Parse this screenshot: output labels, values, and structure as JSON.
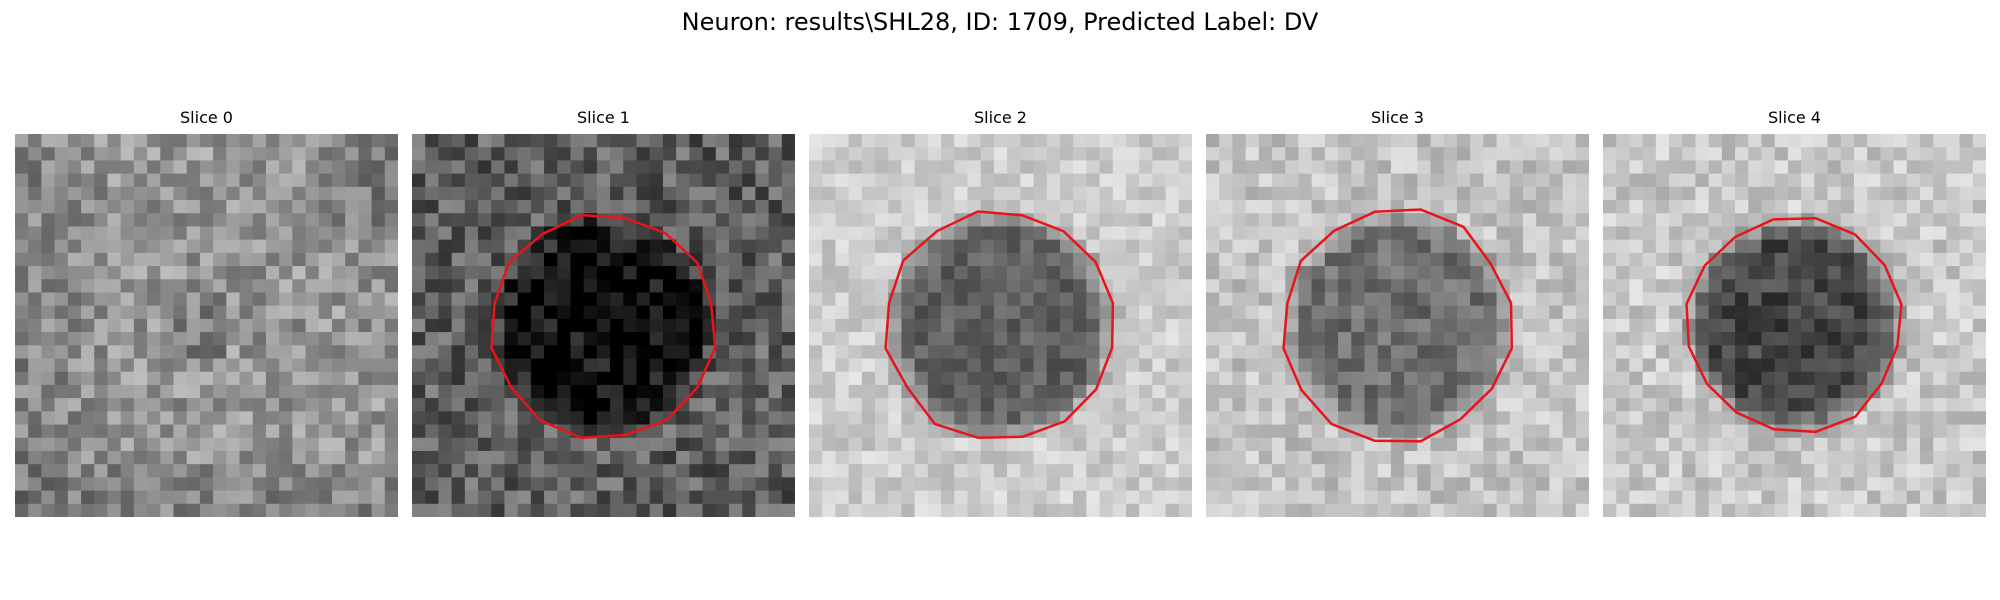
{
  "figure": {
    "title": "Neuron: results\\SHL28, ID: 1709, Predicted Label: DV"
  },
  "panels": [
    {
      "title": "Slice 0",
      "base_gray": 150,
      "variance": 40,
      "center_gray": 130,
      "center_radius": 0,
      "has_contour": false
    },
    {
      "title": "Slice 1",
      "base_gray": 95,
      "variance": 45,
      "center_gray": 12,
      "center_radius": 0.27,
      "has_contour": true
    },
    {
      "title": "Slice 2",
      "base_gray": 205,
      "variance": 25,
      "center_gray": 95,
      "center_radius": 0.28,
      "has_contour": true
    },
    {
      "title": "Slice 3",
      "base_gray": 195,
      "variance": 30,
      "center_gray": 110,
      "center_radius": 0.28,
      "has_contour": true
    },
    {
      "title": "Slice 4",
      "base_gray": 200,
      "variance": 30,
      "center_gray": 70,
      "center_radius": 0.26,
      "has_contour": true
    }
  ],
  "colors": {
    "contour": "#e8141b"
  }
}
